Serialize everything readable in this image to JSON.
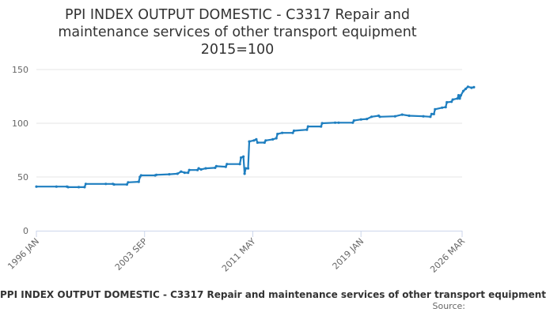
{
  "title_lines": [
    "PPI INDEX OUTPUT DOMESTIC - C3317 Repair and",
    "maintenance services of other transport equipment",
    "2015=100"
  ],
  "legend_text": "PPI INDEX OUTPUT DOMESTIC - C3317 Repair and maintenance services of other transport equipment",
  "source_label": "Source:",
  "colors": {
    "series": "#1f7fc0",
    "grid": "#e6e6e6",
    "axis": "#ccd6eb"
  },
  "chart_data": {
    "type": "line",
    "title": "PPI INDEX OUTPUT DOMESTIC - C3317 Repair and maintenance services of other transport equipment 2015=100",
    "xlabel": "",
    "ylabel": "",
    "ylim": [
      0,
      150
    ],
    "yticks": [
      0,
      50,
      100,
      150
    ],
    "xlim": [
      "1996 JAN",
      "2026 MAR"
    ],
    "xticks": [
      "1996 JAN",
      "2003 SEP",
      "2011 MAY",
      "2019 JAN",
      "2026 MAR"
    ],
    "grid": true,
    "series": [
      {
        "name": "PPI INDEX OUTPUT DOMESTIC - C3317 Repair and maintenance services of other transport equipment",
        "points": [
          [
            "1996-01",
            41
          ],
          [
            "1997-06",
            41
          ],
          [
            "1998-03",
            41
          ],
          [
            "1998-04",
            40.5
          ],
          [
            "1999-01",
            40.5
          ],
          [
            "1999-06",
            40.5
          ],
          [
            "1999-07",
            43.5
          ],
          [
            "2000-12",
            43.5
          ],
          [
            "2001-06",
            43.5
          ],
          [
            "2001-07",
            43
          ],
          [
            "2002-06",
            43
          ],
          [
            "2002-07",
            45
          ],
          [
            "2003-04",
            45.5
          ],
          [
            "2003-05",
            50
          ],
          [
            "2003-06",
            51.5
          ],
          [
            "2004-06",
            51.5
          ],
          [
            "2004-07",
            52
          ],
          [
            "2005-06",
            52.5
          ],
          [
            "2006-01",
            53
          ],
          [
            "2006-04",
            55
          ],
          [
            "2006-07",
            54
          ],
          [
            "2006-10",
            54
          ],
          [
            "2006-11",
            56.5
          ],
          [
            "2007-06",
            56.5
          ],
          [
            "2007-07",
            58
          ],
          [
            "2007-09",
            57
          ],
          [
            "2008-01",
            58
          ],
          [
            "2008-09",
            58.5
          ],
          [
            "2008-10",
            60
          ],
          [
            "2009-06",
            59.5
          ],
          [
            "2009-07",
            62
          ],
          [
            "2010-06",
            62
          ],
          [
            "2010-07",
            68
          ],
          [
            "2010-09",
            69
          ],
          [
            "2010-10",
            53
          ],
          [
            "2010-11",
            58
          ],
          [
            "2011-01",
            58
          ],
          [
            "2011-02",
            83
          ],
          [
            "2011-06",
            84
          ],
          [
            "2011-08",
            85
          ],
          [
            "2011-09",
            82
          ],
          [
            "2012-03",
            82
          ],
          [
            "2012-04",
            84
          ],
          [
            "2012-10",
            85
          ],
          [
            "2013-01",
            86
          ],
          [
            "2013-02",
            90
          ],
          [
            "2013-06",
            91
          ],
          [
            "2014-03",
            91
          ],
          [
            "2014-04",
            93
          ],
          [
            "2015-03",
            94
          ],
          [
            "2015-04",
            97
          ],
          [
            "2016-03",
            97
          ],
          [
            "2016-04",
            100
          ],
          [
            "2017-03",
            100.5
          ],
          [
            "2017-06",
            100.5
          ],
          [
            "2018-06",
            100.5
          ],
          [
            "2018-07",
            102.5
          ],
          [
            "2019-01",
            103.5
          ],
          [
            "2019-06",
            104
          ],
          [
            "2019-10",
            106
          ],
          [
            "2020-04",
            107
          ],
          [
            "2020-05",
            106
          ],
          [
            "2021-06",
            106.5
          ],
          [
            "2021-12",
            108
          ],
          [
            "2022-06",
            107
          ],
          [
            "2023-06",
            106.5
          ],
          [
            "2023-12",
            106
          ],
          [
            "2024-01",
            108.5
          ],
          [
            "2024-03",
            108.5
          ],
          [
            "2024-04",
            113
          ],
          [
            "2024-10",
            114.5
          ],
          [
            "2025-01",
            115
          ],
          [
            "2025-02",
            119.5
          ],
          [
            "2025-06",
            120
          ],
          [
            "2025-07",
            122
          ],
          [
            "2025-11",
            123
          ],
          [
            "2025-12",
            126
          ],
          [
            "2026-01",
            123
          ],
          [
            "2026-02",
            126
          ],
          [
            "2026-04",
            130
          ],
          [
            "2026-06",
            132
          ],
          [
            "2026-08",
            134
          ],
          [
            "2026-11",
            133
          ],
          [
            "2027-01",
            133.5
          ]
        ]
      }
    ]
  }
}
